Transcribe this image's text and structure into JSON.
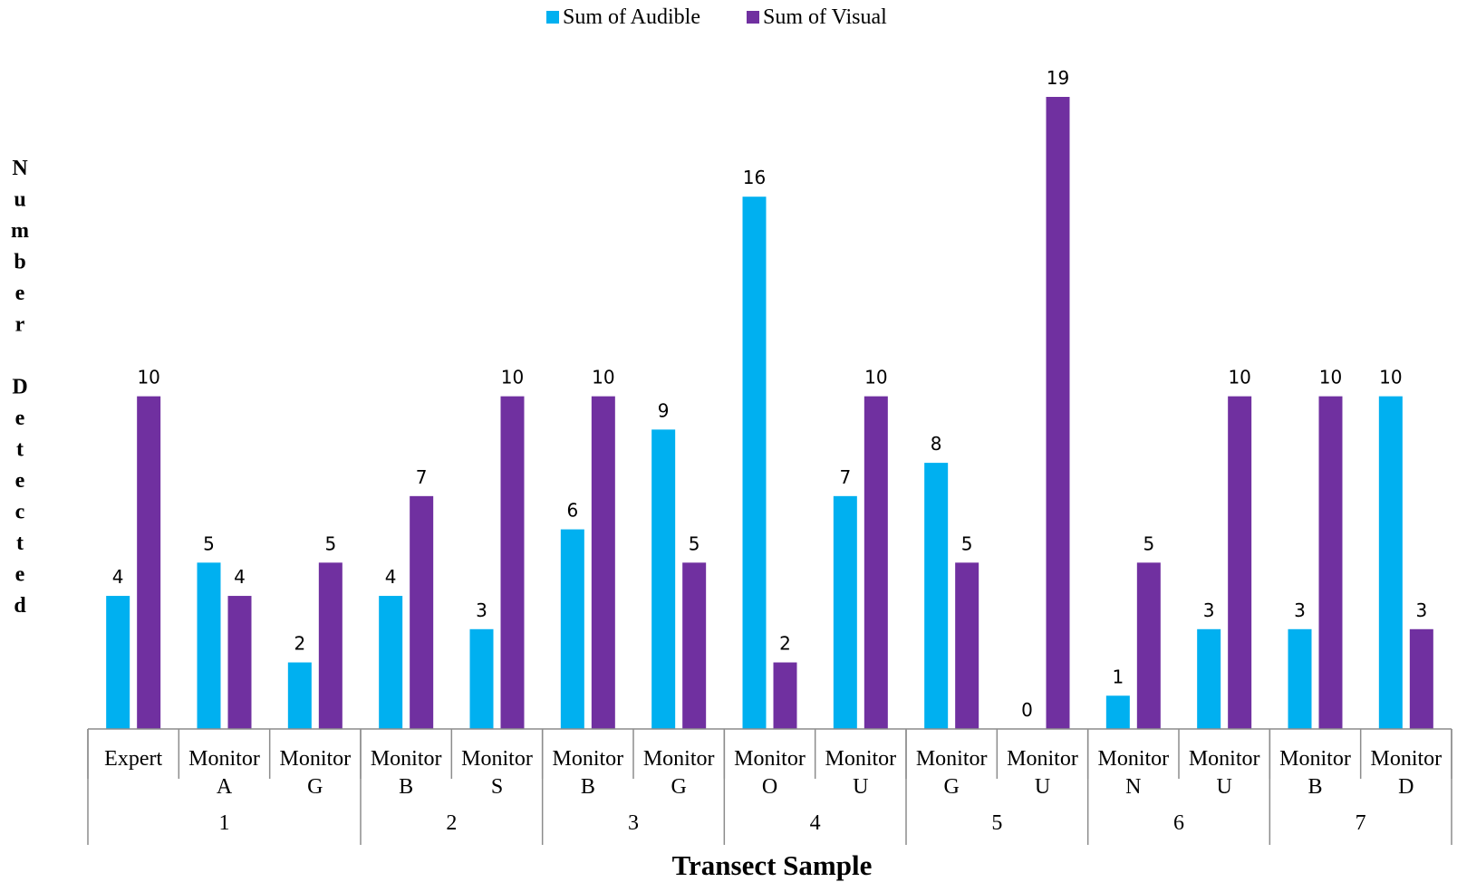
{
  "chart_data": {
    "type": "bar",
    "xlabel": "Transect Sample",
    "ylabel": "Number Detected",
    "ylim": [
      0,
      19
    ],
    "grid": false,
    "legend_position": "top",
    "groups": [
      {
        "label": "1",
        "categories": [
          "Expert",
          "Monitor A",
          "Monitor G"
        ]
      },
      {
        "label": "2",
        "categories": [
          "Monitor B",
          "Monitor S"
        ]
      },
      {
        "label": "3",
        "categories": [
          "Monitor B",
          "Monitor G"
        ]
      },
      {
        "label": "4",
        "categories": [
          "Monitor O",
          "Monitor U"
        ]
      },
      {
        "label": "5",
        "categories": [
          "Monitor G",
          "Monitor U"
        ]
      },
      {
        "label": "6",
        "categories": [
          "Monitor N",
          "Monitor U"
        ]
      },
      {
        "label": "7",
        "categories": [
          "Monitor B",
          "Monitor D"
        ]
      }
    ],
    "categories": [
      [
        "Expert"
      ],
      [
        "Monitor",
        "A"
      ],
      [
        "Monitor",
        "G"
      ],
      [
        "Monitor",
        "B"
      ],
      [
        "Monitor",
        "S"
      ],
      [
        "Monitor",
        "B"
      ],
      [
        "Monitor",
        "G"
      ],
      [
        "Monitor",
        "O"
      ],
      [
        "Monitor",
        "U"
      ],
      [
        "Monitor",
        "G"
      ],
      [
        "Monitor",
        "U"
      ],
      [
        "Monitor",
        "N"
      ],
      [
        "Monitor",
        "U"
      ],
      [
        "Monitor",
        "B"
      ],
      [
        "Monitor",
        "D"
      ]
    ],
    "series": [
      {
        "name": "Sum of Audible",
        "color": "#00b0f0",
        "values": [
          4,
          5,
          2,
          4,
          3,
          6,
          9,
          16,
          7,
          8,
          0,
          1,
          3,
          3,
          10
        ]
      },
      {
        "name": "Sum of Visual",
        "color": "#7030a0",
        "values": [
          10,
          4,
          5,
          7,
          10,
          10,
          5,
          2,
          10,
          5,
          19,
          5,
          10,
          10,
          3
        ]
      }
    ]
  }
}
